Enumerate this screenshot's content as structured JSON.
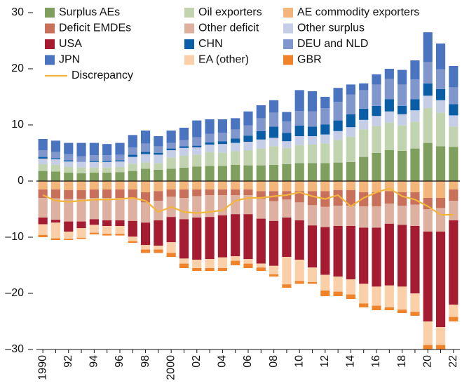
{
  "chart_data": {
    "type": "bar",
    "categories": [
      "1990",
      null,
      "92",
      null,
      "94",
      null,
      "96",
      null,
      "98",
      null,
      "2000",
      null,
      "02",
      null,
      "04",
      null,
      "06",
      null,
      "08",
      null,
      "10",
      null,
      "12",
      null,
      "14",
      null,
      "16",
      null,
      "18",
      null,
      "20",
      null,
      "22"
    ],
    "ylim": [
      -30,
      30
    ],
    "yticks": [
      30,
      20,
      10,
      0,
      {
        "value": -10,
        "label": "–10"
      },
      {
        "value": -20,
        "label": "–20"
      },
      {
        "value": -30,
        "label": "–30"
      }
    ],
    "series": [
      {
        "name": "Surplus AEs",
        "color": "#7f9f5f",
        "values": [
          1.8,
          1.7,
          1.5,
          1.4,
          1.5,
          1.5,
          1.6,
          1.8,
          2.2,
          2.0,
          2.2,
          2.4,
          2.6,
          2.7,
          2.7,
          2.9,
          2.8,
          2.8,
          2.9,
          3.0,
          3.2,
          3.2,
          3.2,
          3.3,
          3.4,
          4.3,
          5.0,
          5.5,
          5.4,
          5.8,
          6.8,
          6.2,
          6.1
        ]
      },
      {
        "name": "Oil exporters",
        "color": "#c2d3b0",
        "values": [
          1.2,
          1.2,
          1.0,
          1.0,
          0.9,
          0.9,
          0.9,
          1.3,
          1.1,
          1.2,
          2.0,
          2.1,
          2.1,
          2.5,
          2.4,
          2.4,
          2.7,
          3.0,
          3.3,
          2.9,
          3.2,
          3.3,
          3.5,
          4.0,
          4.5,
          4.9,
          4.8,
          4.9,
          4.5,
          4.8,
          6.2,
          6.0,
          3.6
        ]
      },
      {
        "name": "AE commodity exporters",
        "color": "#f4b57a",
        "values": [
          -1.5,
          -1.5,
          -1.6,
          -1.6,
          -1.5,
          -1.5,
          -1.5,
          -1.5,
          -2.0,
          -1.8,
          -1.5,
          -1.5,
          -1.5,
          -1.5,
          -1.5,
          -1.5,
          -1.5,
          -1.8,
          -1.8,
          -1.8,
          -1.8,
          -1.8,
          -1.8,
          -1.6,
          -1.6,
          -2.0,
          -2.0,
          -1.8,
          -2.0,
          -2.0,
          -3.0,
          -3.0,
          -1.5
        ]
      },
      {
        "name": "Deficit EMDEs",
        "color": "#c8705a",
        "values": [
          -1.5,
          -1.6,
          -1.6,
          -1.6,
          -1.5,
          -1.5,
          -1.5,
          -1.6,
          -1.8,
          -1.7,
          -1.3,
          -1.5,
          -1.2,
          -1.0,
          -1.0,
          -1.0,
          -1.0,
          -1.4,
          -1.8,
          -1.5,
          -2.0,
          -2.5,
          -2.8,
          -2.8,
          -2.8,
          -2.5,
          -2.5,
          -2.2,
          -2.4,
          -2.2,
          -2.0,
          -1.8,
          -2.0
        ]
      },
      {
        "name": "Other deficit",
        "color": "#deb0a0",
        "values": [
          -3.5,
          -3.8,
          -4.0,
          -4.0,
          -3.8,
          -4.0,
          -4.0,
          -4.0,
          -3.6,
          -3.5,
          -3.6,
          -3.8,
          -3.8,
          -3.9,
          -3.6,
          -3.4,
          -3.4,
          -3.5,
          -3.5,
          -3.2,
          -3.2,
          -3.6,
          -3.6,
          -3.6,
          -3.6,
          -3.8,
          -3.8,
          -3.6,
          -3.4,
          -3.8,
          -4.0,
          -4.2,
          -3.5
        ]
      },
      {
        "name": "Other surplus",
        "color": "#c6cde6",
        "values": [
          1.0,
          1.0,
          1.0,
          1.0,
          1.0,
          1.0,
          1.0,
          1.2,
          1.5,
          1.5,
          1.3,
          1.4,
          1.3,
          1.3,
          1.5,
          1.5,
          1.5,
          1.6,
          1.5,
          1.2,
          1.6,
          1.5,
          1.6,
          1.6,
          1.7,
          1.7,
          1.8,
          2.0,
          2.0,
          2.0,
          2.2,
          2.2,
          2.0
        ]
      },
      {
        "name": "USA",
        "color": "#a51c30",
        "values": [
          -1.2,
          -0.5,
          -1.8,
          -1.2,
          -1.0,
          -1.0,
          -1.0,
          -2.8,
          -4.0,
          -4.5,
          -4.5,
          -7.0,
          -7.5,
          -7.5,
          -7.5,
          -7.5,
          -8.0,
          -8.0,
          -8.0,
          -7.0,
          -7.0,
          -7.5,
          -8.5,
          -9.0,
          -9.5,
          -10.0,
          -10.5,
          -11.0,
          -11.0,
          -12.0,
          -16.0,
          -17.0,
          -15.0
        ]
      },
      {
        "name": "CHN",
        "color": "#0a5ea8",
        "values": [
          0.3,
          0.2,
          0.2,
          0,
          0.2,
          0.2,
          0.2,
          0.4,
          0.4,
          0.3,
          0.3,
          0.3,
          0.3,
          0.4,
          0.5,
          0.8,
          1.1,
          1.5,
          2.0,
          1.5,
          1.9,
          1.7,
          1.8,
          1.9,
          2.3,
          2.0,
          1.8,
          2.2,
          1.5,
          2.0,
          2.2,
          2.0,
          2.0
        ]
      },
      {
        "name": "DEU and NLD",
        "color": "#7f97cc",
        "values": [
          1.2,
          1.1,
          1.1,
          1.0,
          1.0,
          1.0,
          1.0,
          1.3,
          1.5,
          1.2,
          1.0,
          1.1,
          1.5,
          1.5,
          1.5,
          1.6,
          1.8,
          2.3,
          2.5,
          2.0,
          2.6,
          2.7,
          2.9,
          3.3,
          3.5,
          3.3,
          3.8,
          3.6,
          3.8,
          3.5,
          3.8,
          3.5,
          3.0
        ]
      },
      {
        "name": "JPN",
        "color": "#4a73c0",
        "values": [
          2.0,
          2.0,
          2.0,
          2.4,
          2.2,
          2.0,
          2.1,
          2.2,
          2.3,
          1.8,
          2.2,
          2.2,
          3.0,
          2.6,
          2.4,
          2.0,
          2.5,
          2.3,
          2.2,
          1.7,
          3.7,
          3.6,
          2.0,
          2.5,
          1.8,
          1.2,
          1.8,
          1.8,
          2.6,
          3.4,
          5.3,
          4.6,
          3.8
        ]
      },
      {
        "name": "EA (other)",
        "color": "#fbd0a8",
        "values": [
          -1.9,
          -2.8,
          -1.3,
          -1.7,
          -1.4,
          -1.4,
          -1.4,
          -0.8,
          -0.8,
          -0.7,
          -1.9,
          -0.9,
          -1.5,
          -1.6,
          -1.9,
          -0.8,
          -0.8,
          -0.7,
          -1.5,
          -4.9,
          -3.8,
          -2.6,
          -2.8,
          -2.7,
          -2.7,
          -3.5,
          -3.4,
          -3.9,
          -4.1,
          -3.3,
          -4.2,
          -3.2,
          -2.2
        ]
      },
      {
        "name": "GBR",
        "color": "#f0822a",
        "values": [
          -0.4,
          -0.3,
          -0.2,
          -0.2,
          -0.3,
          -0.3,
          -0.3,
          -0.3,
          -0.6,
          -0.6,
          -0.7,
          -0.8,
          -0.5,
          -0.5,
          -0.5,
          -0.8,
          -0.8,
          -0.6,
          -0.4,
          -0.6,
          -0.5,
          -0.3,
          -1.0,
          -0.8,
          -0.8,
          -0.7,
          -0.8,
          -0.5,
          -0.6,
          -0.7,
          -0.8,
          -0.8,
          -0.8
        ]
      },
      {
        "name": "Discrepancy",
        "color": "#f2b53c",
        "type": "line",
        "values": [
          -2.5,
          -3.5,
          -3.7,
          -3.5,
          -3.3,
          -3.3,
          -3.2,
          -3.0,
          -3.5,
          -5.5,
          -4.6,
          -5.5,
          -5.7,
          -5.5,
          -5.2,
          -3.5,
          -3.0,
          -3.0,
          -2.7,
          -2.5,
          -2.0,
          -2.7,
          -3.2,
          -2.5,
          -4.5,
          -3.0,
          -2.0,
          -1.3,
          -2.7,
          -3.3,
          -4.5,
          -6.0,
          -6.0
        ]
      }
    ]
  }
}
